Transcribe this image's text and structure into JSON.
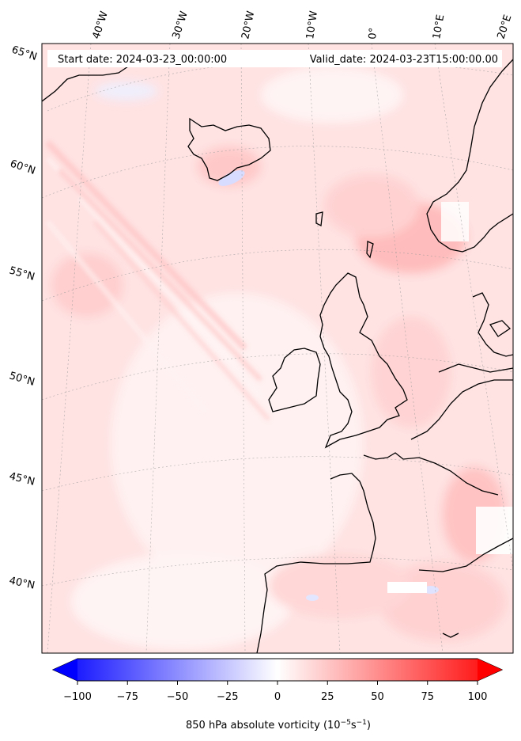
{
  "header": {
    "start_date": "Start date: 2024-03-23_00:00:00",
    "valid_date": "Valid_date: 2024-03-23T15:00:00.00"
  },
  "longitude_labels": [
    "40°W",
    "30°W",
    "20°W",
    "10°W",
    "0°",
    "10°E",
    "20°E"
  ],
  "latitude_labels": [
    "65°N",
    "60°N",
    "55°N",
    "50°N",
    "45°N",
    "40°N"
  ],
  "colorbar": {
    "ticks": [
      "−100",
      "−75",
      "−50",
      "−25",
      "0",
      "25",
      "50",
      "75",
      "100"
    ],
    "label_main": "850 hPa absolute vorticity (10",
    "label_exp1": "−5",
    "label_mid": "s",
    "label_exp2": "−1",
    "label_end": ")",
    "colors": {
      "min": "#0000ff",
      "mid": "#ffffff",
      "max": "#ff0000"
    }
  },
  "colors": {
    "coastline": "#000000",
    "field_background": "#ffe4e4",
    "grid": "#9a9a9a"
  }
}
